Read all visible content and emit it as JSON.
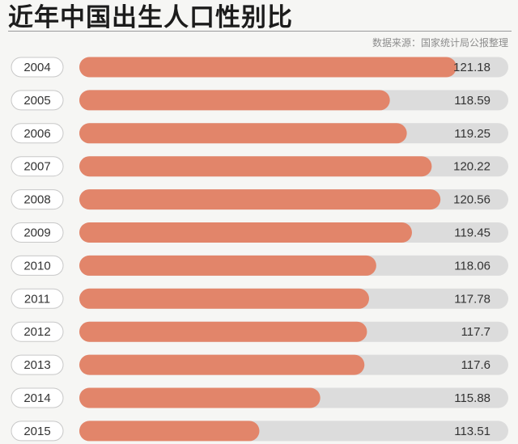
{
  "title": "近年中国出生人口性别比",
  "source": "数据来源：国家统计局公报整理",
  "colors": {
    "bar": "#e2856a",
    "track": "#dcdcdc",
    "pill_border": "#c8c8c8",
    "pill_fill": "#ffffff",
    "background": "#f6f6f4"
  },
  "chart_data": {
    "type": "bar",
    "orientation": "horizontal",
    "title": "近年中国出生人口性别比",
    "categories": [
      "2004",
      "2005",
      "2006",
      "2007",
      "2008",
      "2009",
      "2010",
      "2011",
      "2012",
      "2013",
      "2014",
      "2015"
    ],
    "values": [
      121.18,
      118.59,
      119.25,
      120.22,
      120.56,
      119.45,
      118.06,
      117.78,
      117.7,
      117.6,
      115.88,
      113.51
    ],
    "value_labels": [
      "121.18",
      "118.59",
      "119.25",
      "120.22",
      "120.56",
      "119.45",
      "118.06",
      "117.78",
      "117.7",
      "117.6",
      "115.88",
      "113.51"
    ],
    "xlim": [
      106.5,
      123.2
    ],
    "grid": false,
    "legend": "none"
  }
}
